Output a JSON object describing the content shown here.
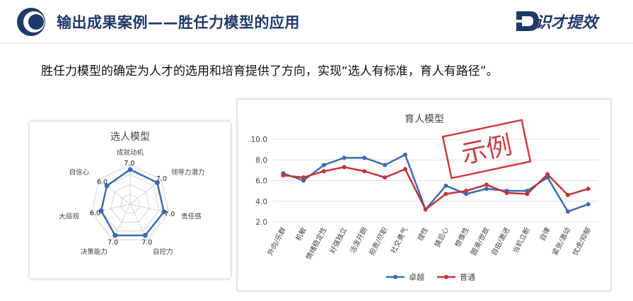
{
  "header": {
    "title": "输出成果案例——胜任力模型的应用",
    "brand_name": "识才提效"
  },
  "subtitle": "胜任力模型的确定为人才的选用和培育提供了方向，实现“选人有标准，育人有路径”。",
  "colors": {
    "accent": "#1f3a68",
    "series_excellent": "#3b6bb0",
    "series_normal": "#c0353a",
    "stamp": "#c8272d"
  },
  "chart_data": [
    {
      "type": "radar",
      "title": "选人模型",
      "categories": [
        "成就动机",
        "领导力潜力",
        "责任感",
        "自控力",
        "决策能力",
        "大局观",
        "自信心"
      ],
      "values": [
        7.0,
        7.0,
        7.0,
        7.0,
        7.0,
        6.0,
        6.0
      ],
      "value_labels": [
        "7.0",
        "7.0",
        "7.0",
        "7.0",
        "7.0",
        "6.0",
        "6.0"
      ]
    },
    {
      "type": "line",
      "title": "育人模型",
      "stamp": "示例",
      "categories": [
        "外向/乐群",
        "机敏",
        "情绪稳定性",
        "好强独立",
        "活泼开朗",
        "担责/尽职",
        "社交勇气",
        "理性",
        "猜忌心",
        "想像性",
        "圆滑/世故",
        "自由/激进",
        "当机立断",
        "自律",
        "紧张/激动",
        "忧虑/抑郁"
      ],
      "yticks": [
        "10.0",
        "8.0",
        "6.0",
        "4.0",
        "2.0"
      ],
      "ylim": [
        2.0,
        10.0
      ],
      "legend_position": "bottom",
      "series": [
        {
          "name": "卓越",
          "values": [
            6.7,
            6.0,
            7.5,
            8.2,
            8.2,
            7.5,
            8.5,
            3.2,
            5.5,
            4.7,
            5.2,
            5.0,
            5.0,
            6.3,
            3.0,
            3.7
          ]
        },
        {
          "name": "普通",
          "values": [
            6.5,
            6.3,
            6.9,
            7.3,
            6.9,
            6.3,
            7.1,
            3.2,
            4.7,
            5.0,
            5.6,
            4.8,
            4.7,
            6.6,
            4.6,
            5.2
          ]
        }
      ]
    }
  ]
}
